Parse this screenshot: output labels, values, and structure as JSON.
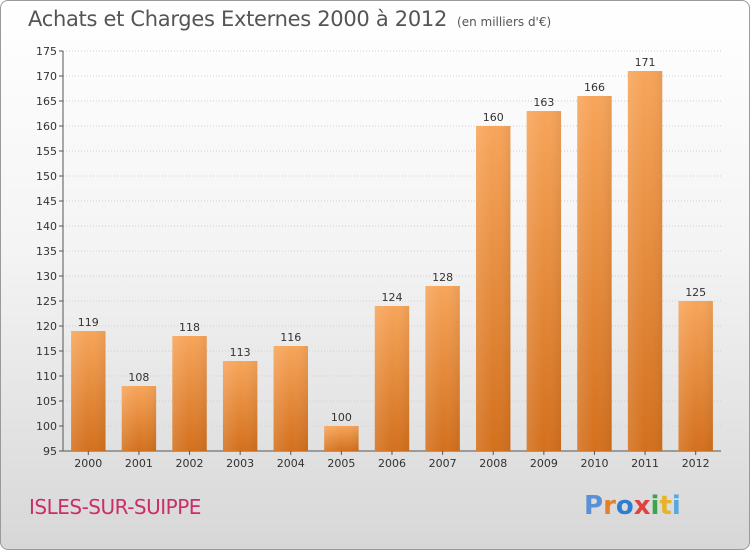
{
  "title": "Achats et Charges Externes 2000 à 2012",
  "unit": "(en milliers d'€)",
  "commune": "ISLES-SUR-SUIPPE",
  "logo": "Proxiti",
  "colors": {
    "bar_top": "#f7a55a",
    "bar_bottom": "#d3701d",
    "grid": "#d0d0d0",
    "axis": "#555555",
    "commune": "#cc2c6a"
  },
  "chart_data": {
    "type": "bar",
    "categories": [
      "2000",
      "2001",
      "2002",
      "2003",
      "2004",
      "2005",
      "2006",
      "2007",
      "2008",
      "2009",
      "2010",
      "2011",
      "2012"
    ],
    "values": [
      119,
      108,
      118,
      113,
      116,
      100,
      124,
      128,
      160,
      163,
      166,
      171,
      125
    ],
    "ylim": [
      95,
      175
    ],
    "yticks": [
      95,
      100,
      105,
      110,
      115,
      120,
      125,
      130,
      135,
      140,
      145,
      150,
      155,
      160,
      165,
      170,
      175
    ],
    "grid": true
  }
}
